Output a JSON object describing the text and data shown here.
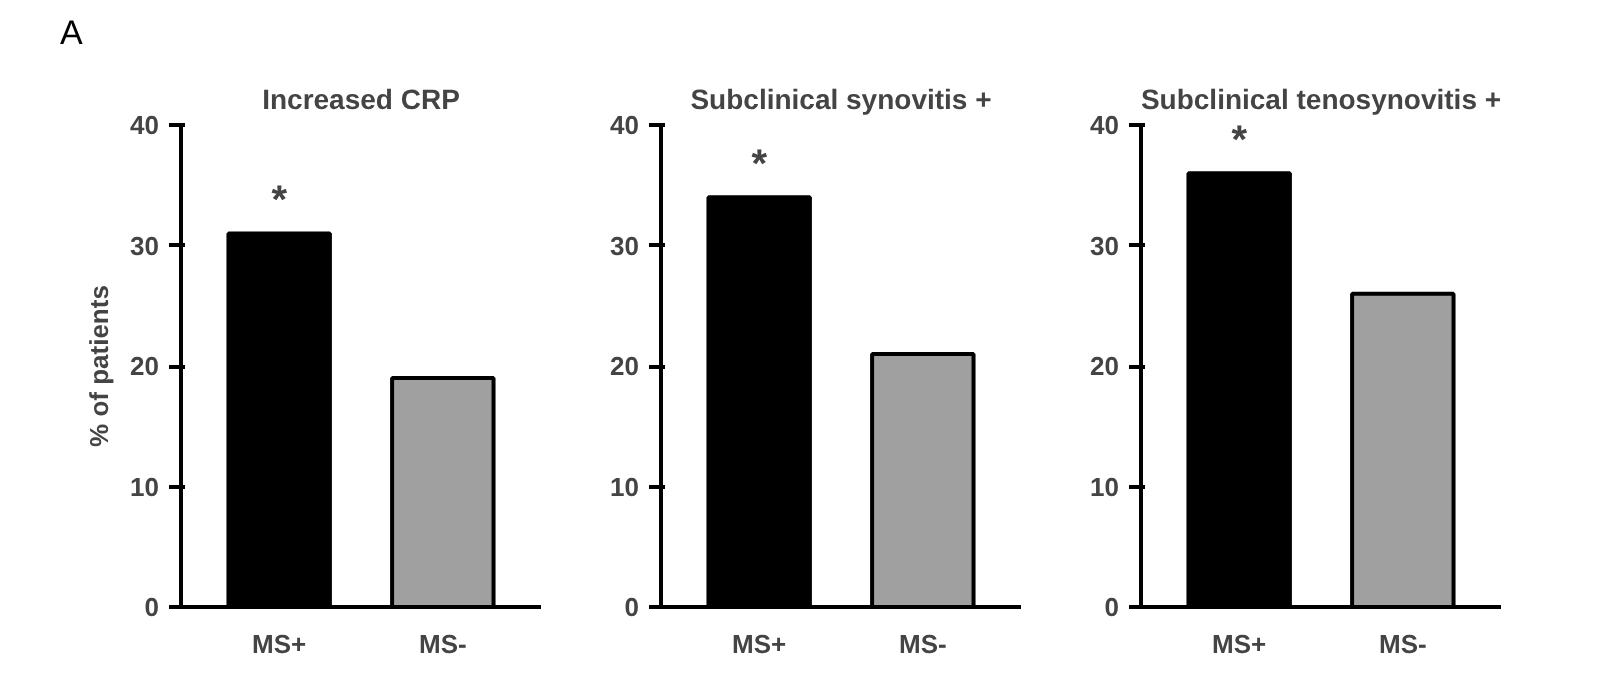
{
  "chart_data": [
    {
      "type": "bar",
      "title": "Increased CRP",
      "ylabel": "% of patients",
      "categories": [
        "MS+",
        "MS-"
      ],
      "values": [
        31,
        19
      ],
      "colors": [
        "#000000",
        "#a0a0a0"
      ],
      "ylim": [
        0,
        40
      ],
      "yticks": [
        0,
        10,
        20,
        30,
        40
      ],
      "grid": false,
      "annotations": [
        "A",
        "*"
      ]
    },
    {
      "type": "bar",
      "title": "Subclinical synovitis +",
      "categories": [
        "MS+",
        "MS-"
      ],
      "values": [
        34,
        21
      ],
      "colors": [
        "#000000",
        "#a0a0a0"
      ],
      "ylim": [
        0,
        40
      ],
      "yticks": [
        0,
        10,
        20,
        30,
        40
      ],
      "grid": false,
      "annotations": [
        "*"
      ]
    },
    {
      "type": "bar",
      "title": "Subclinical tenosynovitis +",
      "categories": [
        "MS+",
        "MS-"
      ],
      "values": [
        36,
        26
      ],
      "colors": [
        "#000000",
        "#a0a0a0"
      ],
      "ylim": [
        0,
        40
      ],
      "yticks": [
        0,
        10,
        20,
        30,
        40
      ],
      "grid": false,
      "annotations": [
        "*"
      ]
    }
  ]
}
